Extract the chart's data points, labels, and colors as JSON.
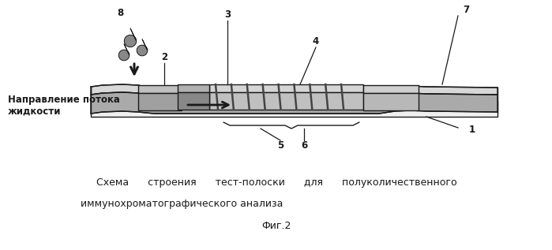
{
  "bg_color": "#ffffff",
  "fig_width": 6.99,
  "fig_height": 3.17,
  "dpi": 100,
  "caption_line1": "Схема      строения      тест-полоски      для      полуколичественного",
  "caption_line2": "иммунохроматографического анализа",
  "caption_fig": "Фиг.2",
  "labels": [
    "1",
    "2",
    "3",
    "4",
    "5",
    "6",
    "7",
    "8"
  ],
  "flow_text_line1": "Направление потока",
  "flow_text_line2": "жидкости",
  "line_color": "#1a1a1a",
  "gray_light": "#d8d8d8",
  "gray_mid": "#aaaaaa",
  "gray_dark": "#707070",
  "gray_vdark": "#444444",
  "drop_color": "#888888",
  "label_fontsize": 8.5,
  "caption_fontsize": 9.0,
  "flow_fontsize": 8.5
}
